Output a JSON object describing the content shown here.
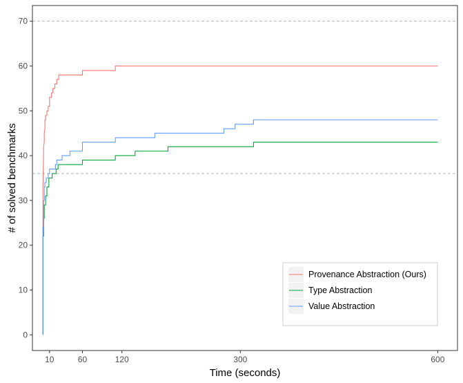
{
  "chart_data": {
    "type": "line",
    "step": true,
    "xlabel": "Time (seconds)",
    "ylabel": "# of solved benchmarks",
    "xlim": [
      -16,
      630
    ],
    "ylim": [
      -3.5,
      73.5
    ],
    "x_ticks": [
      10,
      60,
      120,
      300,
      600
    ],
    "y_ticks": [
      0,
      10,
      20,
      30,
      40,
      50,
      60,
      70
    ],
    "reference_lines": [
      70,
      36
    ],
    "grid": false,
    "legend_position": "bottom-right",
    "series": [
      {
        "name": "Provenance Abstraction (Ours)",
        "color": "#F8766D",
        "points": [
          [
            0,
            0
          ],
          [
            0,
            33
          ],
          [
            1,
            40
          ],
          [
            1,
            42
          ],
          [
            2,
            43
          ],
          [
            2,
            45
          ],
          [
            3,
            46
          ],
          [
            3,
            48
          ],
          [
            4,
            48
          ],
          [
            4,
            49
          ],
          [
            6,
            49
          ],
          [
            6,
            50
          ],
          [
            8,
            50
          ],
          [
            8,
            51
          ],
          [
            10,
            51
          ],
          [
            10,
            53
          ],
          [
            13,
            53
          ],
          [
            13,
            54
          ],
          [
            15,
            54
          ],
          [
            15,
            55
          ],
          [
            18,
            55
          ],
          [
            18,
            56
          ],
          [
            21,
            56
          ],
          [
            21,
            57
          ],
          [
            24,
            57
          ],
          [
            24,
            58
          ],
          [
            60,
            58
          ],
          [
            60,
            59
          ],
          [
            110,
            59
          ],
          [
            110,
            60
          ],
          [
            600,
            60
          ]
        ]
      },
      {
        "name": "Type Abstraction",
        "color": "#00A638",
        "points": [
          [
            0,
            0
          ],
          [
            0,
            22
          ],
          [
            1,
            22
          ],
          [
            1,
            26
          ],
          [
            2,
            26
          ],
          [
            2,
            29
          ],
          [
            4,
            29
          ],
          [
            4,
            31
          ],
          [
            6,
            31
          ],
          [
            6,
            33
          ],
          [
            9,
            33
          ],
          [
            9,
            35
          ],
          [
            14,
            35
          ],
          [
            14,
            36
          ],
          [
            20,
            36
          ],
          [
            20,
            37
          ],
          [
            23,
            37
          ],
          [
            23,
            38
          ],
          [
            60,
            38
          ],
          [
            60,
            39
          ],
          [
            110,
            39
          ],
          [
            110,
            40
          ],
          [
            140,
            40
          ],
          [
            140,
            41
          ],
          [
            190,
            41
          ],
          [
            190,
            42
          ],
          [
            320,
            42
          ],
          [
            320,
            43
          ],
          [
            600,
            43
          ]
        ]
      },
      {
        "name": "Value Abstraction",
        "color": "#619CFF",
        "points": [
          [
            0,
            0
          ],
          [
            0,
            24
          ],
          [
            1,
            24
          ],
          [
            1,
            30
          ],
          [
            2,
            30
          ],
          [
            2,
            33
          ],
          [
            3,
            33
          ],
          [
            3,
            34
          ],
          [
            5,
            34
          ],
          [
            5,
            35
          ],
          [
            8,
            35
          ],
          [
            8,
            36
          ],
          [
            10,
            36
          ],
          [
            10,
            37
          ],
          [
            19,
            37
          ],
          [
            19,
            38
          ],
          [
            21,
            38
          ],
          [
            21,
            39
          ],
          [
            29,
            39
          ],
          [
            29,
            40
          ],
          [
            41,
            40
          ],
          [
            41,
            41
          ],
          [
            60,
            41
          ],
          [
            60,
            43
          ],
          [
            110,
            43
          ],
          [
            110,
            44
          ],
          [
            170,
            44
          ],
          [
            170,
            45
          ],
          [
            275,
            45
          ],
          [
            275,
            46
          ],
          [
            292,
            46
          ],
          [
            292,
            47
          ],
          [
            320,
            47
          ],
          [
            320,
            48
          ],
          [
            600,
            48
          ]
        ]
      }
    ]
  }
}
